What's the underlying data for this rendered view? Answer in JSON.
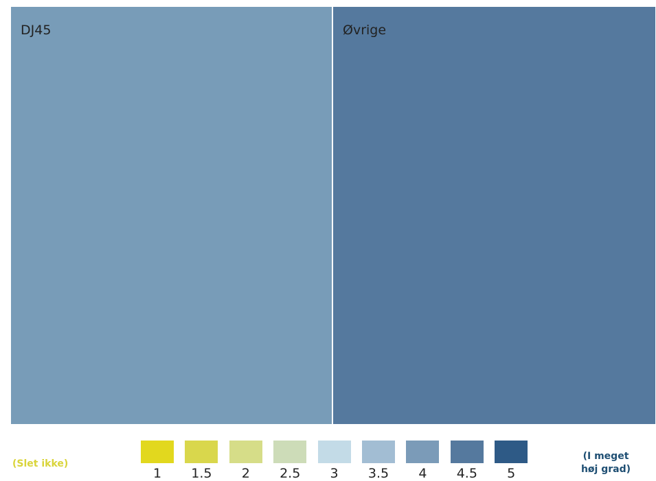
{
  "chart_data": {
    "type": "treemap",
    "title": "",
    "tiles": [
      {
        "name": "DJ45",
        "weight": 0.5,
        "color_value": 4.0,
        "color": "#789cb8"
      },
      {
        "name": "Øvrige",
        "weight": 0.5,
        "color_value": 4.5,
        "color": "#55799e"
      }
    ],
    "color_scale": {
      "ticks": [
        "1",
        "1.5",
        "2",
        "2.5",
        "3",
        "3.5",
        "4",
        "4.5",
        "5"
      ],
      "colors": [
        "#e2d81e",
        "#d9d74c",
        "#d6dd88",
        "#cddcb8",
        "#c3dbe7",
        "#a2bdd3",
        "#7b9bb8",
        "#55799e",
        "#2e5a86"
      ],
      "min_label": "(Slet ikke)",
      "max_label_lines": [
        "(I meget",
        "høj grad)"
      ],
      "min_label_color": "#d9d43a",
      "max_label_color": "#1f4f73"
    }
  }
}
